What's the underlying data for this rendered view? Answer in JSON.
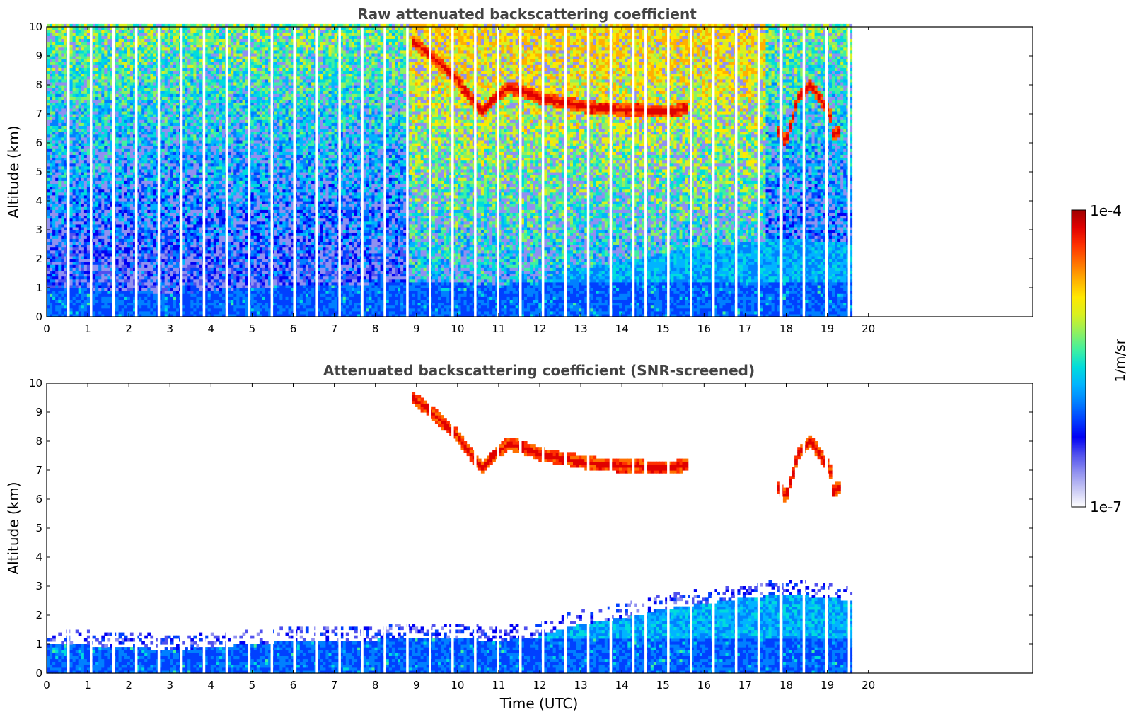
{
  "chart_data": {
    "type": "heatmap",
    "colorbar": {
      "min_label": "1e-7",
      "max_label": "1e-4",
      "label": "1/m/sr",
      "scale": "log",
      "vmin": 1e-07,
      "vmax": 0.0001,
      "colors": [
        "#ffffff",
        "#c8c8f4",
        "#9090f0",
        "#5050ee",
        "#0000f4",
        "#0040ff",
        "#0080ff",
        "#00b4ff",
        "#00dcdc",
        "#40f0a0",
        "#90f060",
        "#d8f020",
        "#ffe800",
        "#ffb000",
        "#ff7000",
        "#ff3000",
        "#e00000",
        "#a00000"
      ]
    },
    "x_range": [
      0,
      24
    ],
    "y_range": [
      0,
      10
    ],
    "x_ticks": [
      "0",
      "1",
      "2",
      "3",
      "4",
      "5",
      "6",
      "7",
      "8",
      "9",
      "10",
      "11",
      "12",
      "13",
      "14",
      "15",
      "16",
      "17",
      "18",
      "19",
      "20"
    ],
    "y_ticks": [
      "0",
      "1",
      "2",
      "3",
      "4",
      "5",
      "6",
      "7",
      "8",
      "9",
      "10"
    ],
    "data_end_hour": 19.6,
    "profile_gaps_hour": [
      0.5,
      1.05,
      1.6,
      2.15,
      2.7,
      3.25,
      3.8,
      4.35,
      4.9,
      5.45,
      6.0,
      6.55,
      7.1,
      7.65,
      8.2,
      8.75,
      9.3,
      9.85,
      10.4,
      10.95,
      11.5,
      12.05,
      12.6,
      13.15,
      13.7,
      14.25,
      14.55,
      15.1,
      15.65,
      16.2,
      16.75,
      17.3,
      17.85,
      18.4,
      18.95,
      19.5
    ],
    "boundary_layer_top_km": [
      [
        0,
        1.0
      ],
      [
        2,
        0.9
      ],
      [
        3,
        0.8
      ],
      [
        4,
        0.9
      ],
      [
        5,
        1.0
      ],
      [
        6,
        1.1
      ],
      [
        8,
        1.15
      ],
      [
        10,
        1.2
      ],
      [
        11,
        1.1
      ],
      [
        12,
        1.3
      ],
      [
        13,
        1.7
      ],
      [
        14,
        1.9
      ],
      [
        15,
        2.2
      ],
      [
        16,
        2.4
      ],
      [
        17,
        2.6
      ],
      [
        18,
        2.7
      ],
      [
        19,
        2.6
      ],
      [
        19.6,
        2.5
      ]
    ],
    "cloud_layers": [
      {
        "x": [
          8.9,
          9.2,
          9.6,
          10.0,
          10.3,
          10.6,
          10.8,
          11.2,
          11.6,
          12.0,
          12.4,
          12.8,
          13.2,
          13.6,
          14.0,
          14.4,
          14.8,
          15.2,
          15.6
        ],
        "y": [
          9.5,
          9.2,
          8.7,
          8.2,
          7.6,
          7.1,
          7.4,
          7.9,
          7.8,
          7.55,
          7.45,
          7.35,
          7.25,
          7.2,
          7.15,
          7.15,
          7.1,
          7.1,
          7.2
        ]
      },
      {
        "x": [
          17.8,
          18.0,
          18.3,
          18.6,
          18.9,
          19.1
        ],
        "y": [
          6.4,
          6.1,
          7.6,
          8.0,
          7.4,
          6.9
        ]
      },
      {
        "x": [
          19.1,
          19.3
        ],
        "y": [
          6.3,
          6.4
        ]
      }
    ],
    "panels": [
      {
        "title": "Raw attenuated backscattering coefficient",
        "xlabel": "",
        "ylabel": "Altitude (km)",
        "screened": false
      },
      {
        "title": "Attenuated backscattering coefficient (SNR-screened)",
        "xlabel": "Time (UTC)",
        "ylabel": "Altitude (km)",
        "screened": true
      }
    ]
  }
}
